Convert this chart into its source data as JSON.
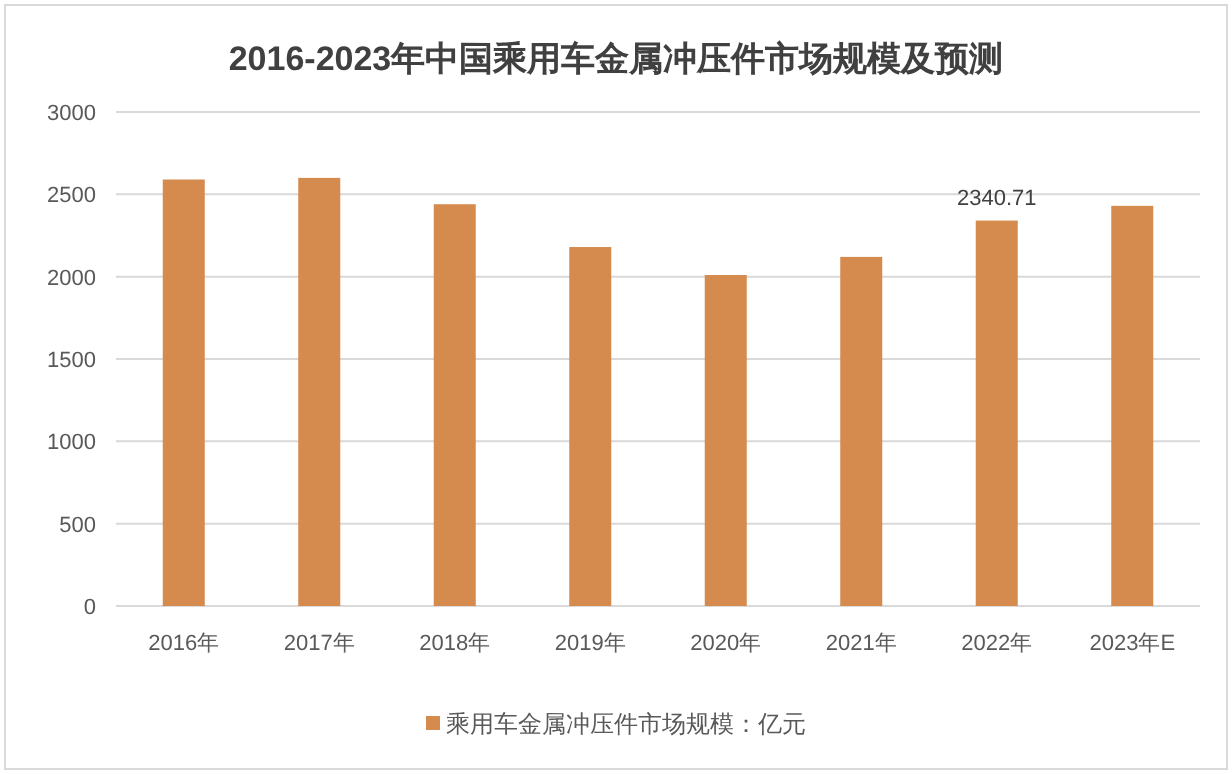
{
  "chart_data": {
    "type": "bar",
    "title": "2016-2023年中国乘用车金属冲压件市场规模及预测",
    "categories": [
      "2016年",
      "2017年",
      "2018年",
      "2019年",
      "2020年",
      "2021年",
      "2022年",
      "2023年E"
    ],
    "series": [
      {
        "name": "乘用车金属冲压件市场规模：亿元",
        "color": "#d58b4e",
        "values": [
          2590,
          2600,
          2440,
          2180,
          2010,
          2120,
          2340.71,
          2430
        ],
        "value_labels": [
          null,
          null,
          null,
          null,
          null,
          null,
          "2340.71",
          null
        ]
      }
    ],
    "ylim": [
      0,
      3000
    ],
    "yticks": [
      0,
      500,
      1000,
      1500,
      2000,
      2500,
      3000
    ],
    "grid": "y",
    "legend": "bottom"
  }
}
